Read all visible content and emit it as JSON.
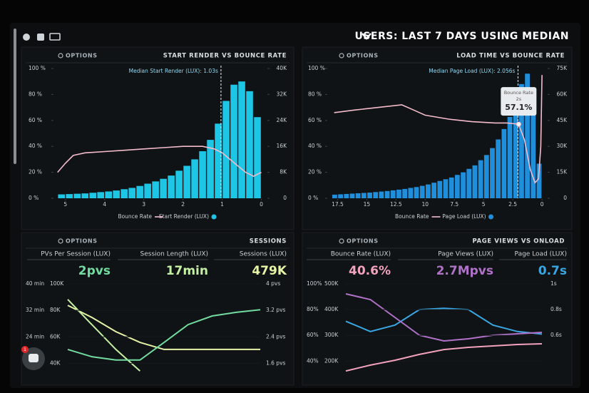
{
  "header": {
    "title": "USERS: LAST 7 DAYS USING MEDIAN"
  },
  "options_label": "OPTIONS",
  "widget": {
    "badge": 1
  },
  "chart_data": [
    {
      "type": "histogram",
      "title": "START RENDER VS BOUNCE RATE",
      "bins": [
        0,
        0.2,
        0.4,
        0.6,
        0.8,
        1,
        1.2,
        1.4,
        1.6,
        1.8,
        2,
        2.2,
        2.4,
        2.6,
        2.8,
        3,
        3.2,
        3.4,
        3.6,
        3.8,
        4,
        4.2,
        4.4,
        4.6,
        4.8,
        5,
        5.2
      ],
      "xlim": [
        5.25,
        -0.1
      ],
      "xticks": [
        5,
        4,
        3,
        2,
        1,
        0
      ],
      "ylim": [
        0,
        100
      ],
      "yticks": [
        {
          "value": 100,
          "label": "100 %"
        },
        {
          "value": 80,
          "label": "80 %"
        },
        {
          "value": 60,
          "label": "60 %"
        },
        {
          "value": 40,
          "label": "40 %"
        },
        {
          "value": 20,
          "label": "20 %"
        },
        {
          "value": 0,
          "label": "0 %"
        }
      ],
      "y2lim": [
        0,
        40000
      ],
      "y2ticks": [
        {
          "value": 40000,
          "label": "40K"
        },
        {
          "value": 32000,
          "label": "32K"
        },
        {
          "value": 24000,
          "label": "24K"
        },
        {
          "value": 16000,
          "label": "16K"
        },
        {
          "value": 8000,
          "label": "8K"
        },
        0
      ],
      "series": [
        {
          "name": "Start Render (LUX)",
          "color": "#1ec6e6",
          "axis": "y2",
          "values": [
            25000,
            33000,
            36000,
            35000,
            30000,
            23000,
            18000,
            14500,
            12000,
            10000,
            8500,
            7000,
            6000,
            5200,
            4500,
            3800,
            3200,
            2800,
            2400,
            2100,
            1900,
            1700,
            1500,
            1400,
            1300,
            1200
          ]
        },
        {
          "name": "Bounce Rate",
          "color": "#f4bccb",
          "x": [
            5.2,
            5.0,
            4.8,
            4.5,
            4.0,
            3.5,
            3.0,
            2.5,
            2.0,
            1.5,
            1.2,
            1.0,
            0.8,
            0.6,
            0.4,
            0.2,
            0.0
          ],
          "values": [
            20,
            27,
            33,
            35,
            36,
            37,
            38,
            39,
            40,
            40,
            38,
            35,
            30,
            25,
            20,
            17,
            20
          ]
        }
      ],
      "annotations": [
        {
          "text": "Median Start Render (LUX): 1.03s",
          "x": 1.03
        }
      ]
    },
    {
      "type": "histogram",
      "title": "LOAD TIME VS BOUNCE RATE",
      "bins": [
        0,
        0.5,
        1,
        1.5,
        2,
        2.5,
        3,
        3.5,
        4,
        4.5,
        5,
        5.5,
        6,
        6.5,
        7,
        7.5,
        8,
        8.5,
        9,
        9.5,
        10,
        10.5,
        11,
        11.5,
        12,
        12.5,
        13,
        13.5,
        14,
        14.5,
        15,
        15.5,
        16,
        16.5,
        17,
        17.5,
        18
      ],
      "xlim": [
        18.2,
        -0.3
      ],
      "xticks": [
        17.5,
        15,
        12.5,
        10,
        7.5,
        5,
        2.5,
        0
      ],
      "ylim": [
        0,
        100
      ],
      "yticks": [
        {
          "value": 100,
          "label": "100 %"
        },
        {
          "value": 80,
          "label": "80 %"
        },
        {
          "value": 60,
          "label": "60 %"
        },
        {
          "value": 40,
          "label": "40 %"
        },
        {
          "value": 20,
          "label": "20 %"
        },
        {
          "value": 0,
          "label": "0 %"
        }
      ],
      "y2lim": [
        0,
        75000
      ],
      "y2ticks": [
        {
          "value": 75000,
          "label": "75K"
        },
        {
          "value": 60000,
          "label": "60K"
        },
        {
          "value": 45000,
          "label": "45K"
        },
        {
          "value": 30000,
          "label": "30K"
        },
        {
          "value": 15000,
          "label": "15K"
        },
        0
      ],
      "series": [
        {
          "name": "Page Load (LUX)",
          "color": "#1f8fdc",
          "axis": "y2",
          "values": [
            20000,
            55000,
            72000,
            66000,
            56000,
            47000,
            40000,
            34000,
            29000,
            25000,
            22000,
            19000,
            17000,
            15000,
            13500,
            12000,
            11000,
            10000,
            9000,
            8000,
            7200,
            6500,
            6000,
            5400,
            5000,
            4600,
            4200,
            3900,
            3600,
            3300,
            3100,
            2900,
            2700,
            2500,
            2300,
            2100
          ]
        },
        {
          "name": "Bounce Rate",
          "color": "#f4bccb",
          "x": [
            17.8,
            16,
            14,
            12,
            11,
            10,
            8,
            6,
            4,
            3,
            2,
            1.5,
            1,
            0.6,
            0.3,
            0.1,
            0
          ],
          "values": [
            66,
            68,
            70,
            72,
            68,
            64,
            61,
            59,
            58,
            58,
            57.1,
            45,
            22,
            12,
            15,
            40,
            95
          ]
        }
      ],
      "annotations": [
        {
          "text": "Median Page Load (LUX): 2.056s",
          "x": 2.056
        }
      ],
      "tooltip": {
        "title": "Bounce Rate",
        "x": 2,
        "x_label": "2s",
        "value": 57.1,
        "value_label": "57.1%"
      }
    },
    {
      "type": "line",
      "title": "SESSIONS",
      "x": [
        0,
        1,
        2,
        3,
        4,
        5,
        6,
        7,
        8
      ],
      "xlim": [
        0,
        8
      ],
      "series": [
        {
          "name": "Sessions (LUX)",
          "total": "479K",
          "color": "#e4f3a6",
          "ylim": [
            30000,
            100000
          ],
          "yticks": [
            {
              "value": 100000,
              "label": "100K"
            },
            {
              "value": 80000,
              "label": "80K"
            },
            {
              "value": 60000,
              "label": "60K"
            },
            {
              "value": 40000,
              "label": "40K"
            }
          ],
          "values": [
            83800,
            74700,
            63900,
            55800,
            50500,
            50500,
            50500,
            50500,
            50500
          ]
        },
        {
          "name": "Session Length (LUX)",
          "total": "17min",
          "color": "#c4f0a4",
          "ylim": [
            12,
            40
          ],
          "yticks": [
            {
              "value": 40,
              "label": "40 min"
            },
            {
              "value": 32,
              "label": "32 min"
            },
            {
              "value": 24,
              "label": "24 min"
            }
          ],
          "values": [
            35.3,
            27.7,
            20.2,
            13.7,
            null,
            null,
            null,
            null,
            null
          ]
        },
        {
          "name": "PVs Per Session (LUX)",
          "total": "2pvs",
          "color": "#72dca0",
          "ylim": [
            1.2,
            4
          ],
          "yticks": [
            {
              "value": 4,
              "label": "4 pvs"
            },
            {
              "value": 3.2,
              "label": "3.2 pvs"
            },
            {
              "value": 2.4,
              "label": "2.4 pvs"
            },
            {
              "value": 1.6,
              "label": "1.6 pvs"
            }
          ],
          "values": [
            2.02,
            1.8,
            1.7,
            1.7,
            2.23,
            2.77,
            3.03,
            3.14,
            3.22
          ]
        }
      ]
    },
    {
      "type": "line",
      "title": "PAGE VIEWS VS ONLOAD",
      "x": [
        0,
        1,
        2,
        3,
        4,
        5,
        6,
        7,
        8
      ],
      "xlim": [
        0,
        8
      ],
      "series": [
        {
          "name": "Page Load (LUX)",
          "total": "0.7s",
          "color": "#3aa6e2",
          "ylim": [
            0.28,
            1
          ],
          "yticks": [
            {
              "value": 1,
              "label": "1s"
            },
            {
              "value": 0.8,
              "label": "0.8s"
            },
            {
              "value": 0.6,
              "label": "0.6s"
            }
          ],
          "values": [
            0.71,
            0.63,
            0.68,
            0.8,
            0.81,
            0.8,
            0.68,
            0.63,
            0.61
          ]
        },
        {
          "name": "Page Views (LUX)",
          "total": "2.7Mpvs",
          "color": "#b072c8",
          "ylim": [
            140000,
            500000
          ],
          "yticks": [
            {
              "value": 500000,
              "label": "500K"
            },
            {
              "value": 400000,
              "label": "400K"
            },
            {
              "value": 300000,
              "label": "300K"
            },
            {
              "value": 200000,
              "label": "200K"
            }
          ],
          "values": [
            461200,
            439100,
            369800,
            300600,
            278500,
            286800,
            300600,
            306200,
            311700
          ]
        },
        {
          "name": "Bounce Rate (LUX)",
          "total": "40.6%",
          "color": "#f2a2bc",
          "ylim": [
            28,
            100
          ],
          "yticks": [
            {
              "value": 100,
              "label": "100%"
            },
            {
              "value": 80,
              "label": "80%"
            },
            {
              "value": 60,
              "label": "60%"
            },
            {
              "value": 40,
              "label": "40%"
            }
          ],
          "values": [
            32.4,
            36.9,
            40.7,
            45.2,
            49,
            50.7,
            51.8,
            52.9,
            53.5
          ]
        }
      ]
    }
  ]
}
